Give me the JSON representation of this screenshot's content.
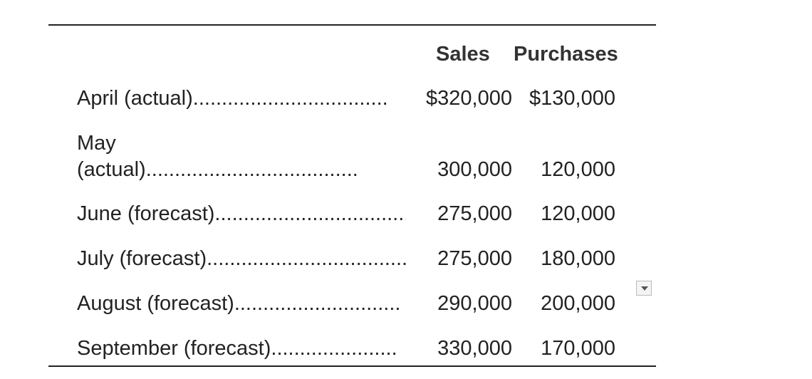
{
  "table": {
    "columns": [
      "Sales",
      "Purchases"
    ],
    "rows": [
      {
        "label": "April (actual)..................................",
        "sales": "$320,000",
        "purchases": "$130,000"
      },
      {
        "label": "May (actual).....................................",
        "sales": "300,000",
        "purchases": "120,000"
      },
      {
        "label": "June (forecast)..................................",
        "sales": "275,000",
        "purchases": "120,000"
      },
      {
        "label": "July (forecast)...................................",
        "sales": "275,000",
        "purchases": "180,000"
      },
      {
        "label": "August (forecast)..............................",
        "sales": "290,000",
        "purchases": "200,000"
      },
      {
        "label": "September (forecast)......................",
        "sales": "330,000",
        "purchases": "170,000"
      }
    ]
  }
}
